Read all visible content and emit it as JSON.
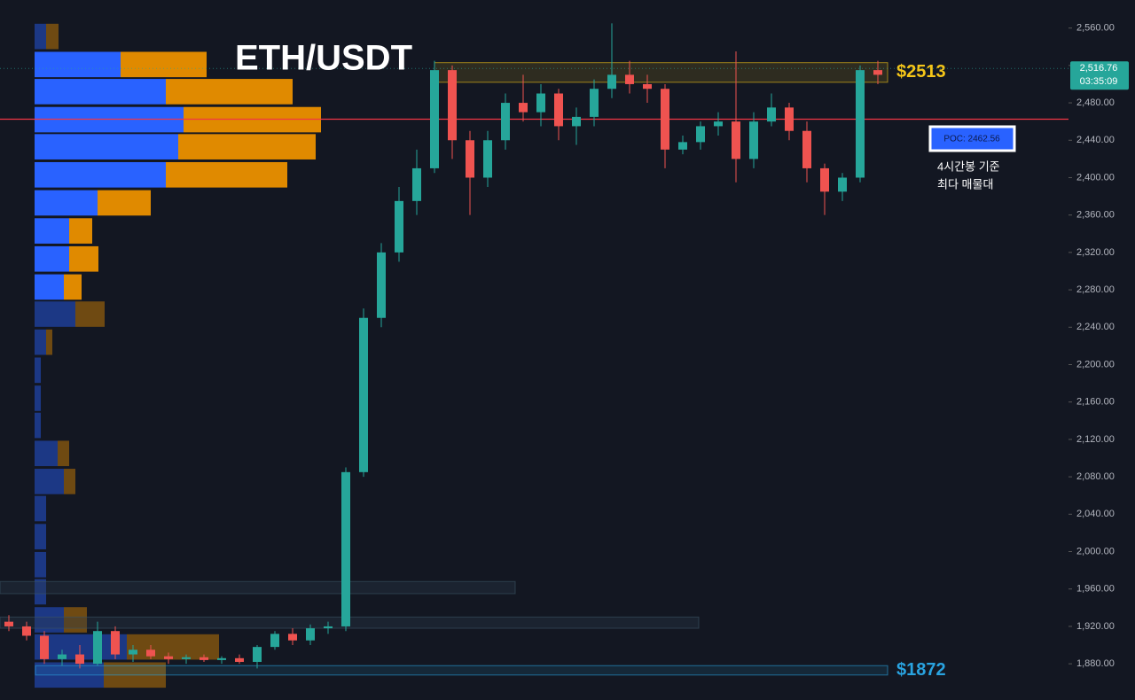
{
  "chart_data": {
    "type": "candlestick",
    "title": "ETH/USDT",
    "up_color": "#26a69a",
    "down_color": "#ef5350",
    "ylim": [
      1846,
      2590
    ],
    "yticks": [
      {
        "value": 1880,
        "label": "1,880.00"
      },
      {
        "value": 1920,
        "label": "1,920.00"
      },
      {
        "value": 1960,
        "label": "1,960.00"
      },
      {
        "value": 2000,
        "label": "2,000.00"
      },
      {
        "value": 2040,
        "label": "2,040.00"
      },
      {
        "value": 2080,
        "label": "2,080.00"
      },
      {
        "value": 2120,
        "label": "2,120.00"
      },
      {
        "value": 2160,
        "label": "2,160.00"
      },
      {
        "value": 2200,
        "label": "2,200.00"
      },
      {
        "value": 2240,
        "label": "2,240.00"
      },
      {
        "value": 2280,
        "label": "2,280.00"
      },
      {
        "value": 2320,
        "label": "2,320.00"
      },
      {
        "value": 2360,
        "label": "2,360.00"
      },
      {
        "value": 2400,
        "label": "2,400.00"
      },
      {
        "value": 2440,
        "label": "2,440.00"
      },
      {
        "value": 2480,
        "label": "2,480.00"
      },
      {
        "value": 2520,
        "label": "2,520.00"
      },
      {
        "value": 2560,
        "label": "2,560.00"
      }
    ],
    "open": [
      1925,
      1920,
      1910,
      1885,
      1890,
      1880,
      1915,
      1890,
      1895,
      1888,
      1885,
      1887,
      1884,
      1886,
      1882,
      1898,
      1912,
      1905,
      1918,
      1920,
      2085,
      2250,
      2320,
      2375,
      2410,
      2515,
      2440,
      2400,
      2440,
      2480,
      2470,
      2490,
      2455,
      2465,
      2495,
      2510,
      2500,
      2495,
      2430,
      2438,
      2455,
      2460,
      2420,
      2460,
      2475,
      2450,
      2410,
      2385,
      2400,
      2515
    ],
    "high": [
      1932,
      1925,
      1915,
      1895,
      1900,
      1925,
      1920,
      1900,
      1900,
      1892,
      1890,
      1890,
      1888,
      1890,
      1900,
      1915,
      1918,
      1922,
      1925,
      2090,
      2260,
      2330,
      2390,
      2430,
      2525,
      2520,
      2450,
      2450,
      2490,
      2510,
      2500,
      2495,
      2475,
      2505,
      2565,
      2525,
      2510,
      2500,
      2445,
      2460,
      2470,
      2535,
      2470,
      2490,
      2480,
      2460,
      2415,
      2405,
      2520,
      2525
    ],
    "low": [
      1915,
      1905,
      1880,
      1878,
      1875,
      1878,
      1885,
      1882,
      1885,
      1880,
      1880,
      1882,
      1880,
      1880,
      1875,
      1895,
      1900,
      1900,
      1912,
      1915,
      2080,
      2240,
      2310,
      2360,
      2405,
      2420,
      2360,
      2390,
      2430,
      2460,
      2455,
      2440,
      2435,
      2455,
      2485,
      2490,
      2480,
      2410,
      2425,
      2430,
      2445,
      2395,
      2410,
      2455,
      2440,
      2395,
      2360,
      2375,
      2395,
      2500
    ],
    "close": [
      1920,
      1910,
      1885,
      1890,
      1880,
      1915,
      1890,
      1895,
      1888,
      1885,
      1887,
      1884,
      1886,
      1882,
      1898,
      1912,
      1905,
      1918,
      1920,
      2085,
      2250,
      2320,
      2375,
      2410,
      2515,
      2440,
      2400,
      2440,
      2480,
      2470,
      2490,
      2455,
      2465,
      2495,
      2510,
      2500,
      2495,
      2430,
      2438,
      2455,
      2460,
      2420,
      2460,
      2475,
      2450,
      2410,
      2385,
      2400,
      2515,
      2510
    ],
    "volume_profile": {
      "levels": [
        2551,
        2521,
        2492,
        2462,
        2433,
        2403,
        2373,
        2343,
        2313,
        2283,
        2254,
        2224,
        2194,
        2164,
        2135,
        2105,
        2075,
        2046,
        2016,
        1986,
        1957,
        1927,
        1898,
        1868
      ],
      "buy": [
        13,
        97,
        148,
        168,
        162,
        148,
        71,
        39,
        39,
        33,
        46,
        13,
        7,
        7,
        7,
        26,
        33,
        13,
        13,
        13,
        13,
        33,
        104,
        78
      ],
      "sell": [
        14,
        97,
        143,
        155,
        155,
        137,
        60,
        26,
        33,
        20,
        33,
        7,
        0,
        0,
        0,
        13,
        13,
        0,
        0,
        0,
        0,
        26,
        104,
        70
      ],
      "buy_color": "#2962ff",
      "sell_color": "#e08a00",
      "value_area": [
        2280,
        2525
      ]
    },
    "poc": {
      "value": 2462.56,
      "label": "POC: 2462.56",
      "color": "#f23645"
    },
    "zones": [
      {
        "low": 2502,
        "high": 2523,
        "label": "$2513",
        "color": "#f5c518"
      },
      {
        "low": 1955,
        "high": 1968
      },
      {
        "low": 1918,
        "high": 1930
      },
      {
        "low": 1868,
        "high": 1878,
        "label": "$1872",
        "color": "#29a3e0"
      }
    ],
    "last_price": {
      "value": 2516.76,
      "label": "2,516.76",
      "countdown": "03:35:09"
    },
    "annotation": [
      "4시간봉 기준",
      "최다 매물대"
    ]
  }
}
